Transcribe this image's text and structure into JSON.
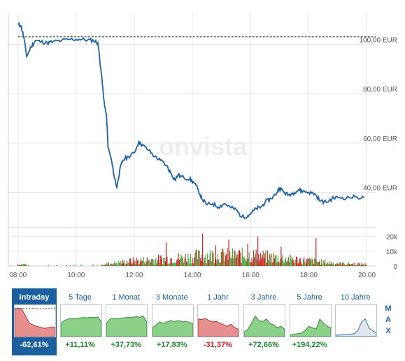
{
  "watermark": "onvista",
  "chart_data": {
    "type": "line",
    "x_ticks": [
      "08:00",
      "10:00",
      "12:00",
      "14:00",
      "16:00",
      "18:00",
      "20:00"
    ],
    "y_ticks": [
      "100,00 EUR",
      "80,00 EUR",
      "60,00 EUR",
      "40,00 EUR"
    ],
    "y_values": [
      100,
      80,
      60,
      40
    ],
    "ylim": [
      28,
      110
    ],
    "reference_line": 103,
    "series": [
      {
        "points": [
          [
            8.0,
            108.0
          ],
          [
            8.1,
            107.5
          ],
          [
            8.2,
            103.0
          ],
          [
            8.3,
            95.0
          ],
          [
            8.45,
            99.0
          ],
          [
            8.6,
            101.5
          ],
          [
            8.8,
            101.0
          ],
          [
            9.0,
            100.5
          ],
          [
            9.2,
            101.0
          ],
          [
            9.5,
            101.5
          ],
          [
            9.8,
            102.0
          ],
          [
            10.1,
            102.0
          ],
          [
            10.4,
            101.8
          ],
          [
            10.6,
            101.5
          ],
          [
            10.75,
            100.5
          ],
          [
            10.85,
            90.0
          ],
          [
            10.95,
            78.0
          ],
          [
            11.05,
            70.0
          ],
          [
            11.1,
            58.0
          ],
          [
            11.2,
            54.0
          ],
          [
            11.3,
            47.0
          ],
          [
            11.4,
            42.0
          ],
          [
            11.5,
            49.0
          ],
          [
            11.6,
            53.0
          ],
          [
            11.8,
            54.5
          ],
          [
            12.0,
            56.0
          ],
          [
            12.15,
            60.5
          ],
          [
            12.3,
            59.0
          ],
          [
            12.5,
            57.0
          ],
          [
            12.7,
            54.5
          ],
          [
            12.9,
            53.0
          ],
          [
            13.1,
            51.0
          ],
          [
            13.25,
            48.0
          ],
          [
            13.4,
            45.0
          ],
          [
            13.5,
            47.0
          ],
          [
            13.7,
            46.0
          ],
          [
            13.9,
            45.5
          ],
          [
            14.05,
            44.0
          ],
          [
            14.2,
            41.0
          ],
          [
            14.35,
            37.0
          ],
          [
            14.5,
            35.0
          ],
          [
            14.7,
            35.5
          ],
          [
            14.9,
            34.0
          ],
          [
            15.1,
            35.5
          ],
          [
            15.3,
            34.0
          ],
          [
            15.5,
            33.0
          ],
          [
            15.7,
            30.0
          ],
          [
            15.9,
            30.5
          ],
          [
            16.05,
            32.0
          ],
          [
            16.2,
            33.5
          ],
          [
            16.35,
            34.0
          ],
          [
            16.5,
            36.0
          ],
          [
            16.7,
            37.5
          ],
          [
            16.85,
            39.0
          ],
          [
            17.0,
            42.0
          ],
          [
            17.15,
            40.0
          ],
          [
            17.3,
            39.0
          ],
          [
            17.5,
            40.0
          ],
          [
            17.65,
            41.0
          ],
          [
            17.8,
            40.5
          ],
          [
            18.0,
            40.0
          ],
          [
            18.2,
            39.5
          ],
          [
            18.4,
            36.5
          ],
          [
            18.6,
            36.0
          ],
          [
            18.8,
            37.5
          ],
          [
            19.0,
            38.0
          ],
          [
            19.3,
            37.8
          ],
          [
            19.6,
            38.2
          ],
          [
            19.9,
            37.8
          ]
        ]
      }
    ],
    "volume": {
      "y_ticks": [
        "20k",
        "10k",
        "0"
      ],
      "y_values": [
        20,
        10,
        0
      ],
      "ylim": [
        0,
        26
      ],
      "profile": [
        [
          8.0,
          2
        ],
        [
          10.9,
          2
        ],
        [
          11.2,
          3
        ],
        [
          12.0,
          6
        ],
        [
          13.5,
          9
        ],
        [
          14.5,
          12
        ],
        [
          16.0,
          12
        ],
        [
          17.0,
          9
        ],
        [
          18.0,
          6
        ],
        [
          19.0,
          3
        ],
        [
          20.0,
          2
        ]
      ],
      "spikes": [
        [
          13.1,
          16
        ],
        [
          14.35,
          22
        ],
        [
          14.8,
          14
        ],
        [
          15.25,
          18
        ],
        [
          15.9,
          15
        ],
        [
          16.25,
          20
        ],
        [
          17.05,
          13
        ],
        [
          18.25,
          19
        ]
      ],
      "colors": {
        "up": "#3aaa35",
        "down": "#cc1f1f"
      }
    },
    "colors": {
      "line": "#1f62a3",
      "grid": "#e3e7ea",
      "axis_text": "#555555"
    }
  },
  "range_tabs": [
    {
      "label": "Intraday",
      "change": "-62,61%",
      "trend": "neg",
      "active": true,
      "spark": [
        0.95,
        0.97,
        0.92,
        0.7,
        0.45,
        0.4,
        0.35,
        0.32,
        0.28,
        0.3,
        0.33,
        0.32
      ]
    },
    {
      "label": "5 Tage",
      "change": "+11,11%",
      "trend": "pos",
      "active": false,
      "spark": [
        0.45,
        0.55,
        0.6,
        0.62,
        0.6,
        0.63,
        0.65,
        0.64,
        0.66,
        0.65,
        0.67,
        0.5
      ]
    },
    {
      "label": "1 Monat",
      "change": "+37,73%",
      "trend": "pos",
      "active": false,
      "spark": [
        0.45,
        0.6,
        0.62,
        0.6,
        0.63,
        0.64,
        0.66,
        0.65,
        0.68,
        0.66,
        0.7,
        0.5
      ]
    },
    {
      "label": "3 Monate",
      "change": "+17,83%",
      "trend": "pos",
      "active": false,
      "spark": [
        0.3,
        0.4,
        0.5,
        0.45,
        0.5,
        0.55,
        0.5,
        0.55,
        0.5,
        0.52,
        0.48,
        0.45
      ]
    },
    {
      "label": "1 Jahr",
      "change": "-31,37%",
      "trend": "neg",
      "active": false,
      "spark": [
        0.6,
        0.58,
        0.62,
        0.55,
        0.5,
        0.52,
        0.45,
        0.4,
        0.35,
        0.42,
        0.3,
        0.25
      ]
    },
    {
      "label": "3 Jahre",
      "change": "+72,66%",
      "trend": "pos",
      "active": false,
      "spark": [
        0.15,
        0.25,
        0.45,
        0.7,
        0.55,
        0.5,
        0.6,
        0.45,
        0.4,
        0.3,
        0.35,
        0.25
      ]
    },
    {
      "label": "5 Jahre",
      "change": "+194,22%",
      "trend": "pos",
      "active": false,
      "spark": [
        0.05,
        0.08,
        0.1,
        0.12,
        0.2,
        0.35,
        0.3,
        0.25,
        0.6,
        0.45,
        0.35,
        0.3
      ]
    },
    {
      "label": "10 Jahre",
      "change": "",
      "trend": "none",
      "active": false,
      "spark": [
        0.05,
        0.05,
        0.06,
        0.06,
        0.08,
        0.1,
        0.2,
        0.5,
        0.6,
        0.3,
        0.2,
        0.12
      ]
    }
  ],
  "max_button": [
    "M",
    "A",
    "X"
  ]
}
